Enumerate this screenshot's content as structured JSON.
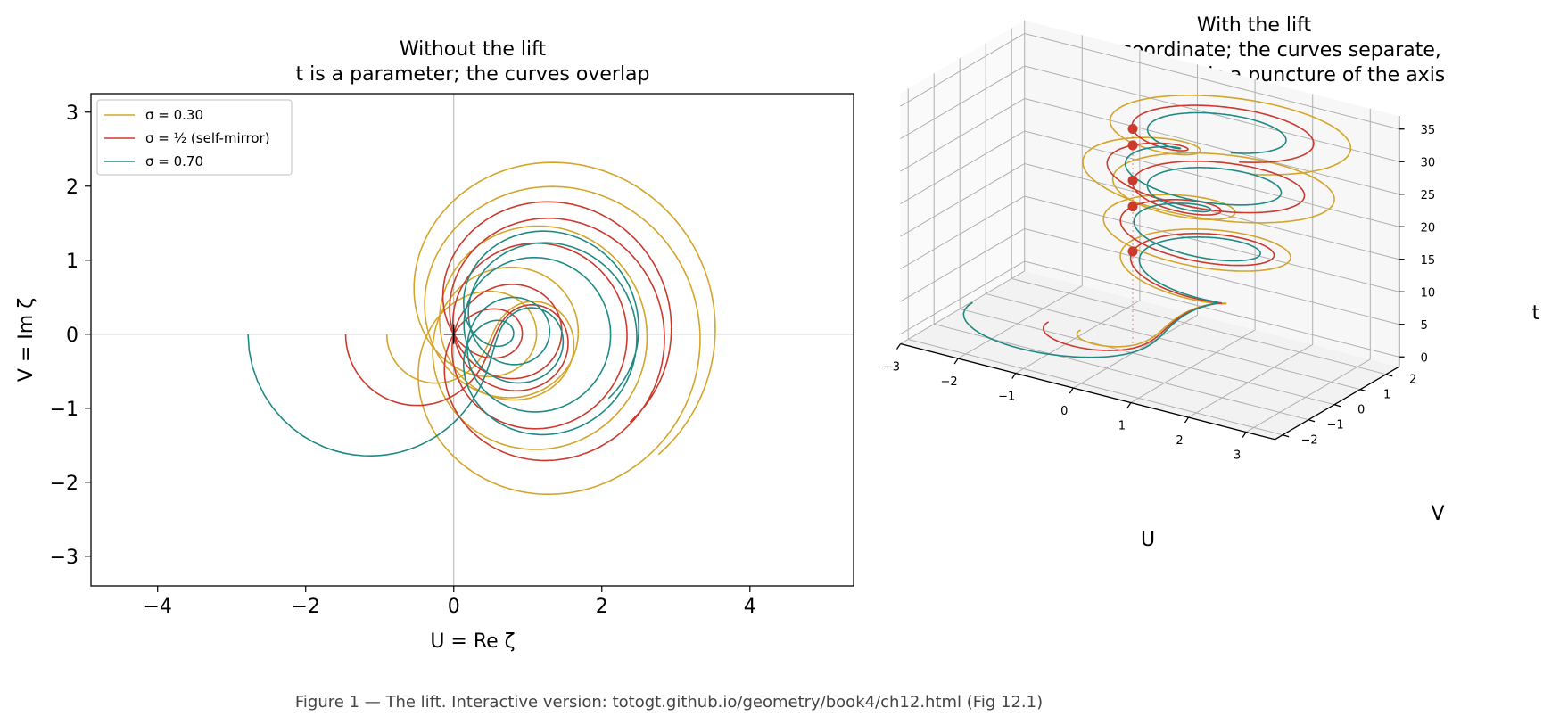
{
  "figure": {
    "caption": "Figure 1 — The lift.  Interactive version: totogt.github.io/geometry/book4/ch12.html  (Fig 12.1)"
  },
  "colors": {
    "sigma_030": "#d4a52a",
    "sigma_050": "#cc3a2e",
    "sigma_070": "#1f8a84",
    "zero_marker": "#cc3a2e",
    "grid": "#b0b0b0"
  },
  "chart_data": [
    {
      "type": "line",
      "title": "Without the lift",
      "subtitle": "t is a parameter; the curves overlap",
      "xlabel": "U = Re ζ",
      "ylabel": "V = Im ζ",
      "xlim": [
        -4.9,
        5.4
      ],
      "ylim": [
        -3.4,
        3.25
      ],
      "xticks": [
        -4,
        -2,
        0,
        2,
        4
      ],
      "xtick_labels": [
        "−4",
        "−2",
        "0",
        "2",
        "4"
      ],
      "yticks": [
        3,
        2,
        1,
        0,
        -1,
        -2,
        -3
      ],
      "ytick_labels": [
        "3",
        "2",
        "1",
        "0",
        "−1",
        "−2",
        "−3"
      ],
      "reference_lines": "U = 0 and V = 0",
      "marker_at_origin": "+",
      "legend_position": "top-left",
      "series": [
        {
          "name": "σ = 0.30",
          "sigma": 0.3,
          "color_key": "sigma_030"
        },
        {
          "name": "σ = ½  (self-mirror)",
          "sigma": 0.5,
          "color_key": "sigma_050"
        },
        {
          "name": "σ = 0.70",
          "sigma": 0.7,
          "color_key": "sigma_070"
        }
      ],
      "curve_definition": "zeta(sigma + i t)",
      "t_range": [
        0,
        36
      ]
    },
    {
      "type": "line",
      "title": "With the lift",
      "subtitle_lines": [
        "t is a coordinate; the curves separate,",
        "and each zero is a puncture of the axis"
      ],
      "xlabel": "U",
      "ylabel": "V",
      "zlabel": "t",
      "xlim": [
        -3,
        3.5
      ],
      "ylim": [
        -2.3,
        2.5
      ],
      "zlim": [
        -1.5,
        37
      ],
      "xticks": [
        -3,
        -2,
        -1,
        0,
        1,
        2,
        3
      ],
      "xtick_labels": [
        "−3",
        "−2",
        "−1",
        "0",
        "1",
        "2",
        "3"
      ],
      "yticks": [
        -2,
        -1,
        0,
        1,
        2
      ],
      "ytick_labels": [
        "−2",
        "−1",
        "0",
        "1",
        "2"
      ],
      "zticks": [
        0,
        5,
        10,
        15,
        20,
        25,
        30,
        35
      ],
      "ztick_labels": [
        "0",
        "5",
        "10",
        "15",
        "20",
        "25",
        "30",
        "35"
      ],
      "grid": true,
      "zeros_t": [
        14.13,
        21.02,
        25.01,
        30.42,
        32.94
      ],
      "zeros_marked_on": "t-axis at U = 0, V = 0",
      "series_names_from": "legend of first panel"
    }
  ]
}
